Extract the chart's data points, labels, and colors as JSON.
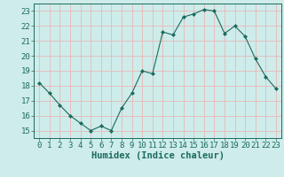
{
  "x": [
    0,
    1,
    2,
    3,
    4,
    5,
    6,
    7,
    8,
    9,
    10,
    11,
    12,
    13,
    14,
    15,
    16,
    17,
    18,
    19,
    20,
    21,
    22,
    23
  ],
  "y": [
    18.2,
    17.5,
    16.7,
    16.0,
    15.5,
    15.0,
    15.3,
    15.0,
    16.5,
    17.5,
    19.0,
    18.8,
    21.6,
    21.4,
    22.6,
    22.8,
    23.1,
    23.0,
    21.5,
    22.0,
    21.3,
    19.8,
    18.6,
    17.8
  ],
  "line_color": "#1a6b5e",
  "marker": "D",
  "marker_size": 2.0,
  "bg_color": "#ceecea",
  "grid_color": "#e8b8b8",
  "xlabel": "Humidex (Indice chaleur)",
  "ylim": [
    14.5,
    23.5
  ],
  "xlim": [
    -0.5,
    23.5
  ],
  "yticks": [
    15,
    16,
    17,
    18,
    19,
    20,
    21,
    22,
    23
  ],
  "xticks": [
    0,
    1,
    2,
    3,
    4,
    5,
    6,
    7,
    8,
    9,
    10,
    11,
    12,
    13,
    14,
    15,
    16,
    17,
    18,
    19,
    20,
    21,
    22,
    23
  ],
  "tick_color": "#1a6b5e",
  "label_color": "#1a6b5e",
  "font_size": 6.5,
  "xlabel_fontsize": 7.5
}
